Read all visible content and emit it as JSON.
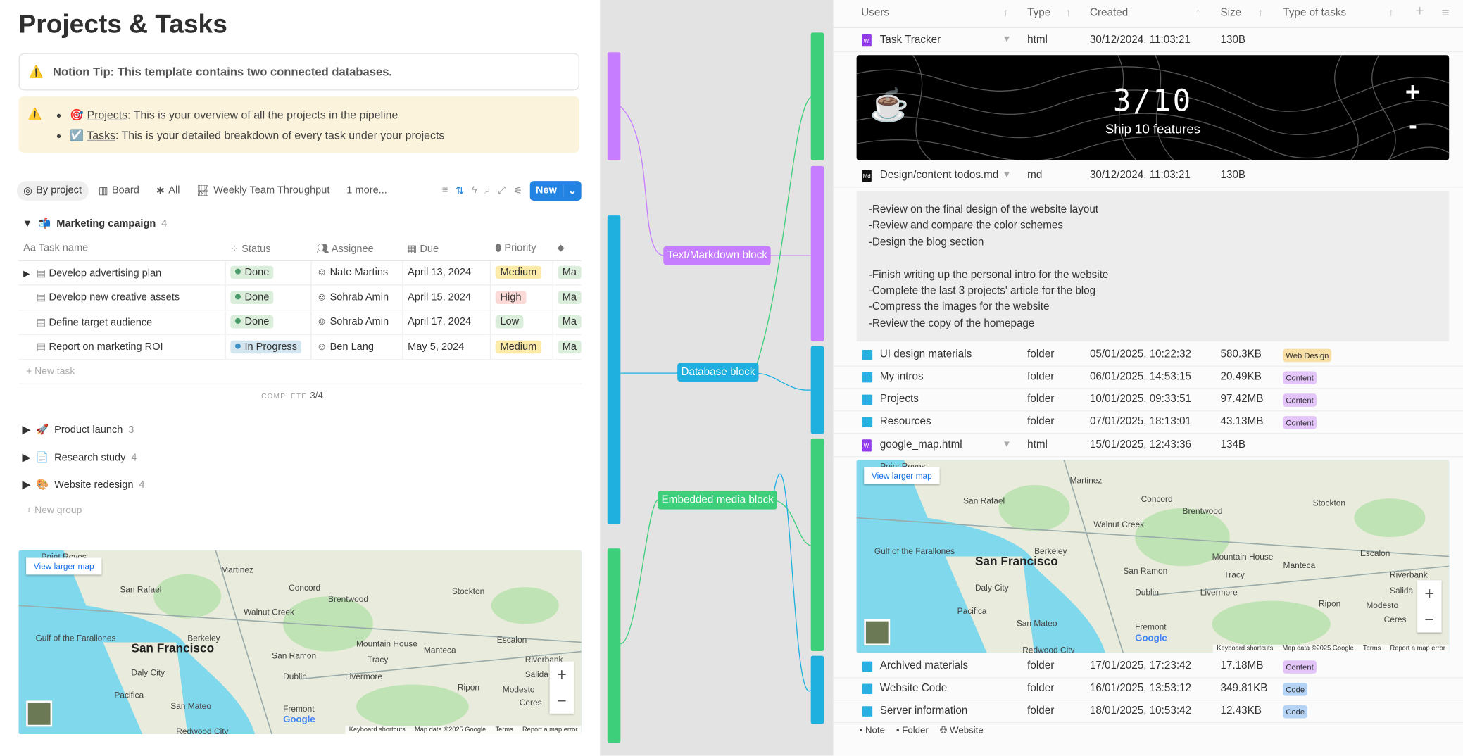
{
  "left": {
    "title": "Projects & Tasks",
    "tip": "Notion Tip: This template contains two connected databases.",
    "callout": [
      {
        "name": "Projects",
        "text": ": This is your overview of all the projects in the pipeline"
      },
      {
        "name": "Tasks",
        "text": ": This is your detailed breakdown of every task under your projects"
      }
    ],
    "tabs": [
      {
        "label": "By project",
        "icon": "target-icon"
      },
      {
        "label": "Board",
        "icon": "board-icon"
      },
      {
        "label": "All",
        "icon": "asterisk-icon"
      },
      {
        "label": "Weekly Team Throughput",
        "icon": "chart-icon"
      },
      {
        "label": "1 more..."
      }
    ],
    "new_label": "New",
    "group": {
      "name": "Marketing campaign",
      "count": "4"
    },
    "columns": [
      "Task name",
      "Status",
      "Assignee",
      "Due",
      "Priority"
    ],
    "rows": [
      {
        "name": "Develop advertising plan",
        "status": "Done",
        "assignee": "Nate Martins",
        "due": "April 13, 2024",
        "priority": "Medium",
        "tag": "Ma"
      },
      {
        "name": "Develop new creative assets",
        "status": "Done",
        "assignee": "Sohrab Amin",
        "due": "April 15, 2024",
        "priority": "High",
        "tag": "Ma"
      },
      {
        "name": "Define target audience",
        "status": "Done",
        "assignee": "Sohrab Amin",
        "due": "April 17, 2024",
        "priority": "Low",
        "tag": "Ma"
      },
      {
        "name": "Report on marketing ROI",
        "status": "In Progress",
        "assignee": "Ben Lang",
        "due": "May 5, 2024",
        "priority": "Medium",
        "tag": "Ma"
      }
    ],
    "new_task": "+ New task",
    "complete_label": "COMPLETE",
    "complete_value": "3/4",
    "groups": [
      {
        "emoji": "🚀",
        "name": "Product launch",
        "count": "3"
      },
      {
        "emoji": "📄",
        "name": "Research study",
        "count": "4"
      },
      {
        "emoji": "🎨",
        "name": "Website redesign",
        "count": "4"
      }
    ],
    "new_group": "+ New group"
  },
  "map": {
    "view_larger": "View larger map",
    "labels": [
      "Point Reyes",
      "San Rafael",
      "Martinez",
      "Concord",
      "Brentwood",
      "Walnut Creek",
      "Berkeley",
      "Stockton",
      "San Francisco",
      "San Ramon",
      "Mountain House",
      "Tracy",
      "Manteca",
      "Daly City",
      "Dublin",
      "Livermore",
      "Pacifica",
      "Ripon",
      "Modesto",
      "Ceres",
      "San Mateo",
      "Fremont",
      "Redwood City",
      "Gulf of the Farallones",
      "Escalon",
      "Riverbank",
      "Salida"
    ],
    "footer": [
      "Keyboard shortcuts",
      "Map data ©2025 Google",
      "Terms",
      "Report a map error"
    ],
    "brand": "Google"
  },
  "middle": {
    "labels": {
      "text": "Text/Markdown block",
      "database": "Database block",
      "media": "Embedded media block"
    },
    "colors": {
      "purple": "#c77dff",
      "blue": "#1fb0e0",
      "green": "#3ecf7a"
    }
  },
  "right": {
    "columns": [
      "Users",
      "Type",
      "Created",
      "Size",
      "Type of tasks"
    ],
    "rows": [
      {
        "name": "Task Tracker",
        "type": "html",
        "created": "30/12/2024, 11:03:21",
        "size": "130B",
        "kind": "html"
      },
      {
        "name": "Design/content todos.md",
        "type": "md",
        "created": "30/12/2024, 11:03:21",
        "size": "130B",
        "kind": "md"
      },
      {
        "name": "UI design materials",
        "type": "folder",
        "created": "05/01/2025, 10:22:32",
        "size": "580.3KB",
        "tag": "Web Design",
        "tagColor": "#f7dfa5"
      },
      {
        "name": "My intros",
        "type": "folder",
        "created": "06/01/2025, 14:53:15",
        "size": "20.49KB",
        "tag": "Content",
        "tagColor": "#e4c5fa"
      },
      {
        "name": "Projects",
        "type": "folder",
        "created": "10/01/2025, 09:33:51",
        "size": "97.42MB",
        "tag": "Content",
        "tagColor": "#e4c5fa"
      },
      {
        "name": "Resources",
        "type": "folder",
        "created": "07/01/2025, 18:13:01",
        "size": "43.13MB",
        "tag": "Content",
        "tagColor": "#e4c5fa"
      },
      {
        "name": "google_map.html",
        "type": "html",
        "created": "15/01/2025, 12:43:36",
        "size": "134B",
        "kind": "html"
      },
      {
        "name": "Archived materials",
        "type": "folder",
        "created": "17/01/2025, 17:23:42",
        "size": "17.18MB",
        "tag": "Content",
        "tagColor": "#e4c5fa"
      },
      {
        "name": "Website Code",
        "type": "folder",
        "created": "16/01/2025, 13:53:12",
        "size": "349.81KB",
        "tag": "Code",
        "tagColor": "#b5d3f5"
      },
      {
        "name": "Server information",
        "type": "folder",
        "created": "18/01/2025, 10:53:42",
        "size": "12.43KB",
        "tag": "Code",
        "tagColor": "#b5d3f5"
      }
    ],
    "tracker": {
      "progress": "3/10",
      "goal": "Ship 10 features",
      "plus": "+",
      "minus": "-"
    },
    "md_lines": [
      "-Review on the final design of the website layout",
      "-Review and compare the color schemes",
      "-Design the blog section",
      "",
      "-Finish writing up the personal intro for the website",
      "-Complete the last 3 projects' article for the blog",
      "-Compress the images for the website",
      "-Review the copy of the homepage"
    ],
    "footer": [
      "Note",
      "Folder",
      "Website"
    ]
  }
}
